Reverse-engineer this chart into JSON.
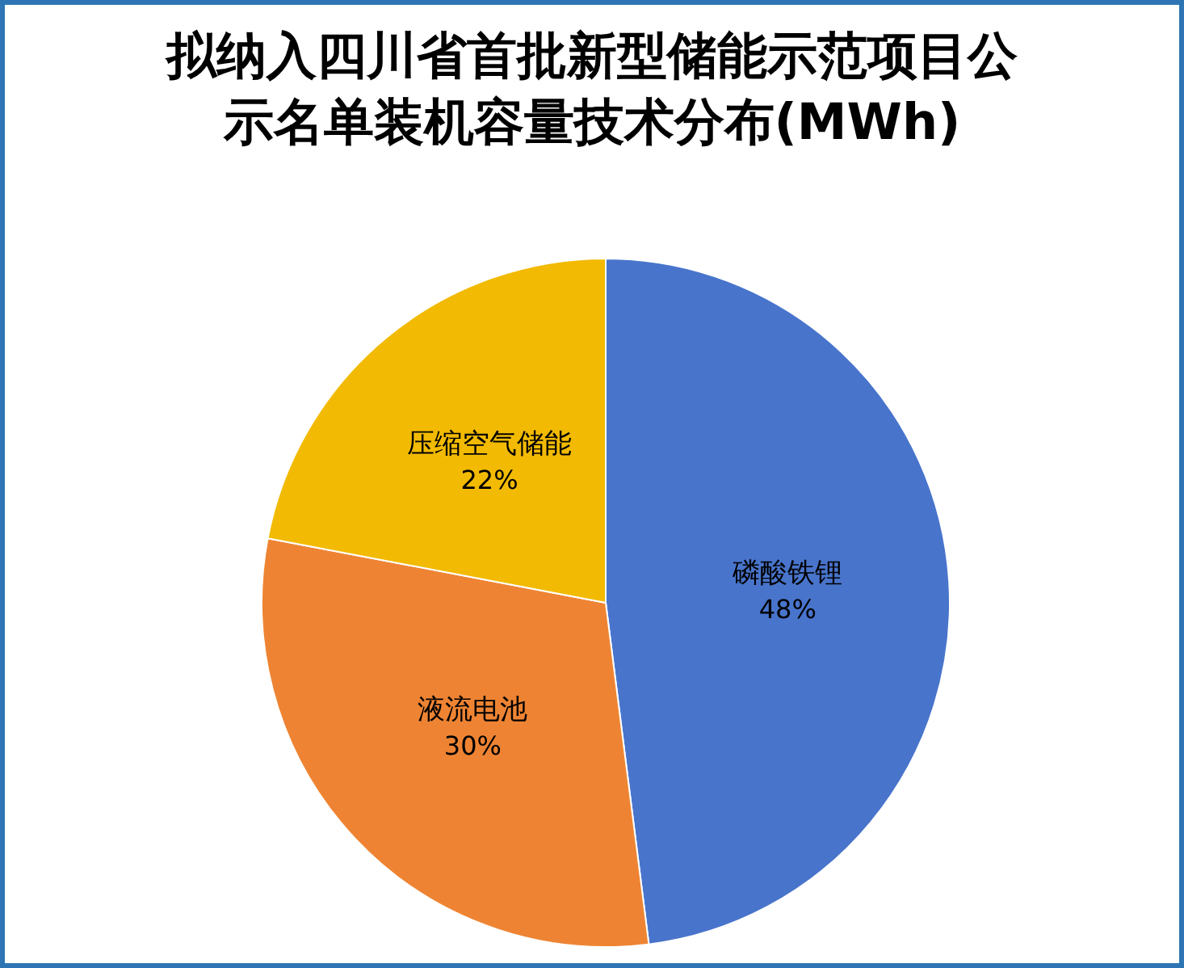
{
  "chart_data": {
    "type": "pie",
    "title": "拟纳入四川省首批新型储能示范项目公示名单装机容量技术分布(MWh)",
    "categories": [
      "磷酸铁锂",
      "液流电池",
      "压缩空气储能"
    ],
    "values": [
      48,
      30,
      22
    ],
    "colors": [
      "#4874cb",
      "#ee8433",
      "#f2ba02"
    ],
    "value_labels": [
      "48%",
      "30%",
      "22%"
    ]
  }
}
